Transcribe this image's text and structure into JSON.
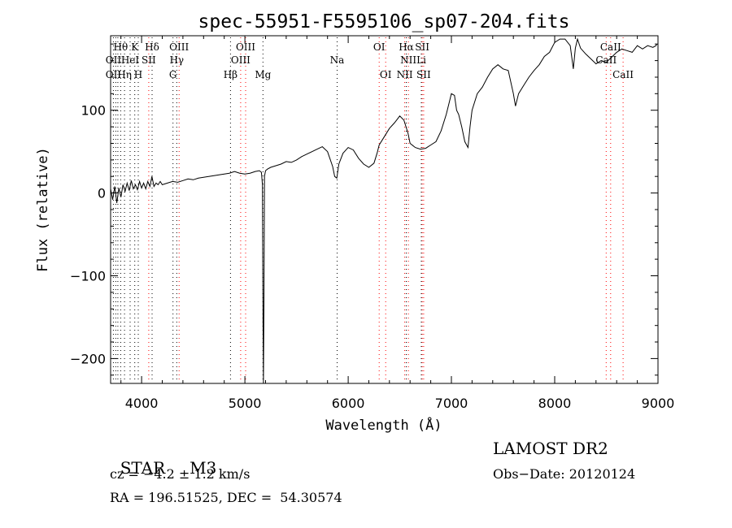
{
  "chart_data": {
    "type": "line",
    "title": "spec-55951-F5595106_sp07-204.fits",
    "xlabel": "Wavelength (Å)",
    "ylabel": "Flux (relative)",
    "xlim": [
      3700,
      9000
    ],
    "ylim": [
      -230,
      190
    ],
    "xticks": [
      4000,
      5000,
      6000,
      7000,
      8000,
      9000
    ],
    "yticks": [
      -200,
      -100,
      0,
      100
    ],
    "grid": false,
    "series": [
      {
        "x": [
          3700,
          3720,
          3740,
          3760,
          3780,
          3800,
          3820,
          3840,
          3860,
          3880,
          3900,
          3920,
          3940,
          3960,
          3980,
          4000,
          4020,
          4040,
          4060,
          4080,
          4100,
          4120,
          4140,
          4160,
          4180,
          4200,
          4250,
          4300,
          4350,
          4400,
          4450,
          4500,
          4550,
          4600,
          4650,
          4700,
          4750,
          4800,
          4850,
          4900,
          4950,
          5000,
          5050,
          5100,
          5140,
          5160,
          5170,
          5175,
          5180,
          5185,
          5190,
          5200,
          5220,
          5250,
          5300,
          5350,
          5400,
          5450,
          5500,
          5550,
          5600,
          5650,
          5700,
          5750,
          5800,
          5850,
          5870,
          5890,
          5910,
          5950,
          6000,
          6050,
          6100,
          6150,
          6200,
          6250,
          6280,
          6300,
          6350,
          6400,
          6450,
          6500,
          6540,
          6560,
          6580,
          6600,
          6650,
          6700,
          6750,
          6800,
          6850,
          6900,
          6950,
          7000,
          7030,
          7050,
          7070,
          7100,
          7130,
          7160,
          7180,
          7200,
          7250,
          7300,
          7350,
          7400,
          7450,
          7500,
          7550,
          7600,
          7620,
          7650,
          7700,
          7750,
          7800,
          7850,
          7900,
          7950,
          8000,
          8050,
          8100,
          8150,
          8180,
          8200,
          8220,
          8250,
          8300,
          8350,
          8400,
          8450,
          8500,
          8550,
          8600,
          8650,
          8700,
          8750,
          8800,
          8850,
          8900,
          8950,
          8980,
          8990
        ],
        "y": [
          5,
          -8,
          8,
          -12,
          6,
          -5,
          10,
          2,
          12,
          3,
          15,
          5,
          10,
          4,
          14,
          6,
          12,
          5,
          14,
          8,
          20,
          8,
          12,
          10,
          14,
          10,
          12,
          14,
          13,
          15,
          17,
          16,
          18,
          19,
          20,
          21,
          22,
          23,
          24,
          26,
          24,
          23,
          24,
          26,
          27,
          25,
          10,
          -140,
          -230,
          -120,
          20,
          27,
          29,
          31,
          33,
          35,
          38,
          37,
          40,
          44,
          47,
          50,
          53,
          56,
          50,
          32,
          20,
          18,
          35,
          48,
          55,
          52,
          42,
          35,
          31,
          36,
          48,
          58,
          68,
          78,
          85,
          93,
          88,
          80,
          72,
          60,
          55,
          53,
          54,
          58,
          62,
          75,
          95,
          120,
          118,
          100,
          95,
          80,
          62,
          55,
          80,
          100,
          120,
          128,
          140,
          150,
          155,
          150,
          148,
          120,
          105,
          120,
          130,
          140,
          148,
          155,
          165,
          170,
          182,
          186,
          186,
          178,
          150,
          175,
          186,
          175,
          168,
          162,
          156,
          160,
          158,
          164,
          170,
          174,
          172,
          170,
          178,
          174,
          178,
          176,
          178,
          180
        ]
      }
    ],
    "line_labels": [
      {
        "label": "Hθ",
        "row": 1,
        "wave": 3798
      },
      {
        "label": "OII",
        "row": 2,
        "wave": 3727
      },
      {
        "label": "OII",
        "row": 3,
        "wave": 3727
      },
      {
        "label": "Hη",
        "row": 3,
        "wave": 3835
      },
      {
        "label": "HeI",
        "row": 2,
        "wave": 3889
      },
      {
        "label": "K",
        "row": 1,
        "wave": 3934
      },
      {
        "label": "SII",
        "row": 2,
        "wave": 4069
      },
      {
        "label": "H",
        "row": 3,
        "wave": 3968
      },
      {
        "label": "Hδ",
        "row": 1,
        "wave": 4102
      },
      {
        "label": "OIII",
        "row": 1,
        "wave": 4363
      },
      {
        "label": "Hγ",
        "row": 2,
        "wave": 4340
      },
      {
        "label": "G",
        "row": 3,
        "wave": 4304
      },
      {
        "label": "OIII",
        "row": 1,
        "wave": 5007
      },
      {
        "label": "OIII",
        "row": 2,
        "wave": 4959
      },
      {
        "label": "Hβ",
        "row": 3,
        "wave": 4861
      },
      {
        "label": "Mg",
        "row": 3,
        "wave": 5175
      },
      {
        "label": "Na",
        "row": 2,
        "wave": 5893
      },
      {
        "label": "OI",
        "row": 1,
        "wave": 6300
      },
      {
        "label": "OI",
        "row": 3,
        "wave": 6363
      },
      {
        "label": "Hα",
        "row": 1,
        "wave": 6563
      },
      {
        "label": "NII",
        "row": 2,
        "wave": 6583
      },
      {
        "label": "NII",
        "row": 3,
        "wave": 6548
      },
      {
        "label": "SII",
        "row": 1,
        "wave": 6717
      },
      {
        "label": "Li",
        "row": 2,
        "wave": 6708
      },
      {
        "label": "SII",
        "row": 3,
        "wave": 6731
      },
      {
        "label": "CaII",
        "row": 1,
        "wave": 8542
      },
      {
        "label": "CaII",
        "row": 2,
        "wave": 8498
      },
      {
        "label": "CaII",
        "row": 3,
        "wave": 8662
      }
    ],
    "line_markers": [
      {
        "wave": 3727,
        "color": "#000000"
      },
      {
        "wave": 3750,
        "color": "#000000"
      },
      {
        "wave": 3770,
        "color": "#000000"
      },
      {
        "wave": 3798,
        "color": "#000000"
      },
      {
        "wave": 3835,
        "color": "#000000"
      },
      {
        "wave": 3889,
        "color": "#000000"
      },
      {
        "wave": 3934,
        "color": "#000000"
      },
      {
        "wave": 3968,
        "color": "#000000"
      },
      {
        "wave": 4069,
        "color": "#ff0000"
      },
      {
        "wave": 4102,
        "color": "#000000"
      },
      {
        "wave": 4304,
        "color": "#000000"
      },
      {
        "wave": 4340,
        "color": "#000000"
      },
      {
        "wave": 4363,
        "color": "#ff0000"
      },
      {
        "wave": 4861,
        "color": "#000000"
      },
      {
        "wave": 4959,
        "color": "#ff0000"
      },
      {
        "wave": 5007,
        "color": "#ff0000"
      },
      {
        "wave": 5175,
        "color": "#000000"
      },
      {
        "wave": 5893,
        "color": "#000000"
      },
      {
        "wave": 6300,
        "color": "#ff0000"
      },
      {
        "wave": 6363,
        "color": "#ff0000"
      },
      {
        "wave": 6548,
        "color": "#ff0000"
      },
      {
        "wave": 6563,
        "color": "#000000"
      },
      {
        "wave": 6583,
        "color": "#ff0000"
      },
      {
        "wave": 6708,
        "color": "#000000"
      },
      {
        "wave": 6717,
        "color": "#ff0000"
      },
      {
        "wave": 6731,
        "color": "#ff0000"
      },
      {
        "wave": 8498,
        "color": "#ff0000"
      },
      {
        "wave": 8542,
        "color": "#ff0000"
      },
      {
        "wave": 8662,
        "color": "#ff0000"
      }
    ]
  },
  "info": {
    "object_class": "STAR",
    "subclass": "M3",
    "survey": "LAMOST DR2",
    "cz": "cz = −4.2 ± 1.2 km/s",
    "obs_date": "Obs−Date: 20120124",
    "coords": "RA = 196.51525, DEC =  54.30574"
  }
}
